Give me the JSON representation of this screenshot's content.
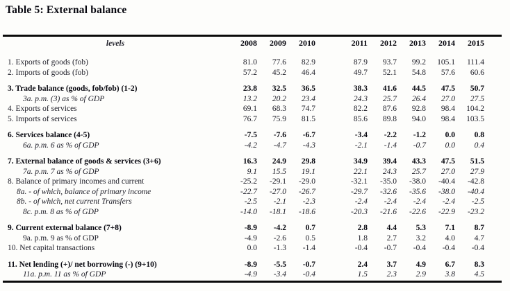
{
  "title": "Table 5: External balance",
  "colors": {
    "text": "#1c1c26",
    "bold_text": "#06060e",
    "rule": "#0a0a0a",
    "background": "#fdfdfb"
  },
  "header": {
    "levels_label": "levels",
    "years": [
      "2008",
      "2009",
      "2010",
      "2011",
      "2012",
      "2013",
      "2014",
      "2015"
    ]
  },
  "rows": [
    {
      "label": "1. Exports of goods (fob)",
      "style": "normal",
      "indent": 0,
      "spacer_before": false,
      "values": [
        "81.0",
        "77.6",
        "82.9",
        "87.9",
        "93.7",
        "99.2",
        "105.1",
        "111.4"
      ]
    },
    {
      "label": "2. Imports of goods (fob)",
      "style": "normal",
      "indent": 0,
      "spacer_before": false,
      "values": [
        "57.2",
        "45.2",
        "46.4",
        "49.7",
        "52.1",
        "54.8",
        "57.6",
        "60.6"
      ]
    },
    {
      "label": "3. Trade balance (goods, fob/fob) (1-2)",
      "style": "bold",
      "indent": 0,
      "spacer_before": true,
      "values": [
        "23.8",
        "32.5",
        "36.5",
        "38.3",
        "41.6",
        "44.5",
        "47.5",
        "50.7"
      ]
    },
    {
      "label": "3a. p.m. (3) as % of GDP",
      "style": "italic",
      "indent": 2,
      "spacer_before": false,
      "values": [
        "13.2",
        "20.2",
        "23.4",
        "24.3",
        "25.7",
        "26.4",
        "27.0",
        "27.5"
      ]
    },
    {
      "label": "4. Exports of services",
      "style": "normal",
      "indent": 0,
      "spacer_before": false,
      "values": [
        "69.1",
        "68.3",
        "74.7",
        "82.2",
        "87.6",
        "92.8",
        "98.4",
        "104.2"
      ]
    },
    {
      "label": "5. Imports of services",
      "style": "normal",
      "indent": 0,
      "spacer_before": false,
      "values": [
        "76.7",
        "75.9",
        "81.5",
        "85.6",
        "89.8",
        "94.0",
        "98.4",
        "103.5"
      ]
    },
    {
      "label": "6. Services balance (4-5)",
      "style": "bold",
      "indent": 0,
      "spacer_before": true,
      "values": [
        "-7.5",
        "-7.6",
        "-6.7",
        "-3.4",
        "-2.2",
        "-1.2",
        "0.0",
        "0.8"
      ]
    },
    {
      "label": "6a. p.m. 6 as % of GDP",
      "style": "italic",
      "indent": 2,
      "spacer_before": false,
      "values": [
        "-4.2",
        "-4.7",
        "-4.3",
        "-2.1",
        "-1.4",
        "-0.7",
        "0.0",
        "0.4"
      ]
    },
    {
      "label": "7. External balance of goods & services (3+6)",
      "style": "bold",
      "indent": 0,
      "spacer_before": true,
      "values": [
        "16.3",
        "24.9",
        "29.8",
        "34.9",
        "39.4",
        "43.3",
        "47.5",
        "51.5"
      ]
    },
    {
      "label": "7a. p.m. 7 as % of GDP",
      "style": "italic",
      "indent": 2,
      "spacer_before": false,
      "values": [
        "9.1",
        "15.5",
        "19.1",
        "22.1",
        "24.3",
        "25.7",
        "27.0",
        "27.9"
      ]
    },
    {
      "label": "8. Balance of primary incomes and current",
      "style": "normal",
      "indent": 0,
      "spacer_before": false,
      "values": [
        "-25.2",
        "-29.1",
        "-29.0",
        "-32.1",
        "-35.0",
        "-38.0",
        "-40.4",
        "-42.8"
      ]
    },
    {
      "label": "8a. - of which, balance of primary income",
      "style": "italic",
      "indent": 1,
      "spacer_before": false,
      "values": [
        "-22.7",
        "-27.0",
        "-26.7",
        "-29.7",
        "-32.6",
        "-35.6",
        "-38.0",
        "-40.4"
      ]
    },
    {
      "label": "8b. - of which, net current Transfers",
      "style": "italic",
      "indent": 1,
      "spacer_before": false,
      "values": [
        "-2.5",
        "-2.1",
        "-2.3",
        "-2.4",
        "-2.4",
        "-2.4",
        "-2.4",
        "-2.5"
      ]
    },
    {
      "label": "8c. p.m. 8 as % of GDP",
      "style": "italic",
      "indent": 2,
      "spacer_before": false,
      "values": [
        "-14.0",
        "-18.1",
        "-18.6",
        "-20.3",
        "-21.6",
        "-22.6",
        "-22.9",
        "-23.2"
      ]
    },
    {
      "label": "9. Current external balance (7+8)",
      "style": "bold",
      "indent": 0,
      "spacer_before": true,
      "values": [
        "-8.9",
        "-4.2",
        "0.7",
        "2.8",
        "4.4",
        "5.3",
        "7.1",
        "8.7"
      ]
    },
    {
      "label": "9a. p.m. 9 as % of GDP",
      "style": "normal",
      "indent": 2,
      "spacer_before": false,
      "values": [
        "-4.9",
        "-2.6",
        "0.5",
        "1.8",
        "2.7",
        "3.2",
        "4.0",
        "4.7"
      ]
    },
    {
      "label": "10. Net capital transactions",
      "style": "normal",
      "indent": 0,
      "spacer_before": false,
      "values": [
        "0.0",
        "-1.3",
        "-1.4",
        "-0.4",
        "-0.7",
        "-0.4",
        "-0.4",
        "-0.4"
      ]
    },
    {
      "label": "11. Net lending (+)/ net borrowing (-) (9+10)",
      "style": "bold",
      "indent": 0,
      "spacer_before": true,
      "values": [
        "-8.9",
        "-5.5",
        "-0.7",
        "2.4",
        "3.7",
        "4.9",
        "6.7",
        "8.3"
      ]
    },
    {
      "label": "11a. p.m. 11 as % of GDP",
      "style": "italic",
      "indent": 2,
      "spacer_before": false,
      "values": [
        "-4.9",
        "-3.4",
        "-0.4",
        "1.5",
        "2.3",
        "2.9",
        "3.8",
        "4.5"
      ]
    }
  ]
}
